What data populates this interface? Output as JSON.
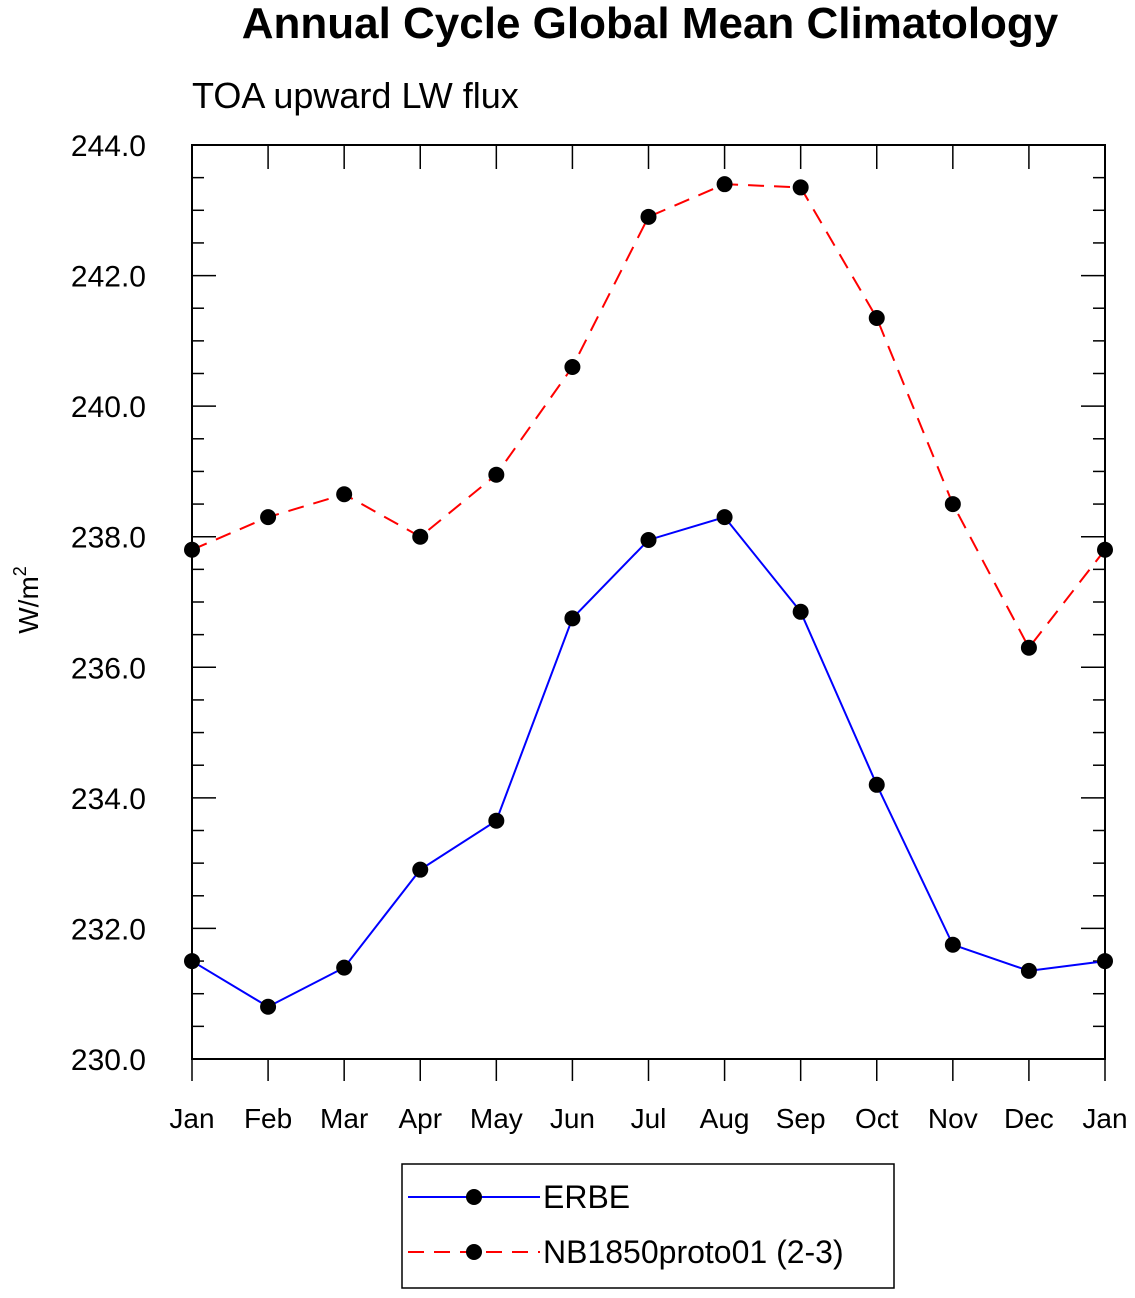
{
  "chart_data": {
    "type": "line",
    "title": "Annual Cycle Global Mean Climatology",
    "subtitle": "TOA upward LW flux",
    "ylabel": "W/m",
    "ylabel_sup": "2",
    "xlabel": "",
    "ylim": [
      230.0,
      244.0
    ],
    "yticks": [
      "244.0",
      "242.0",
      "240.0",
      "238.0",
      "236.0",
      "234.0",
      "232.0",
      "230.0"
    ],
    "yticks_values": [
      244,
      242,
      240,
      238,
      236,
      234,
      232,
      230
    ],
    "categories": [
      "Jan",
      "Feb",
      "Mar",
      "Apr",
      "May",
      "Jun",
      "Jul",
      "Aug",
      "Sep",
      "Oct",
      "Nov",
      "Dec",
      "Jan"
    ],
    "series": [
      {
        "name": "ERBE",
        "color": "#0000ff",
        "dash": "solid",
        "values": [
          231.5,
          230.8,
          231.4,
          232.9,
          233.65,
          236.75,
          237.95,
          238.3,
          236.85,
          234.2,
          231.75,
          231.35,
          231.5
        ]
      },
      {
        "name": "NB1850proto01 (2-3)",
        "color": "#ff0000",
        "dash": "dashed",
        "values": [
          237.8,
          238.3,
          238.65,
          238.0,
          238.95,
          240.6,
          242.9,
          243.4,
          243.35,
          241.35,
          238.5,
          236.3,
          237.8
        ]
      }
    ],
    "legend_position": "bottom-center",
    "grid": false
  }
}
